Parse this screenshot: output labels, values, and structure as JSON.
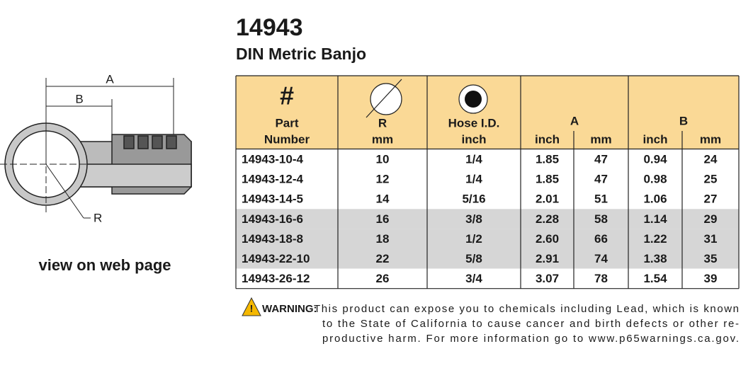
{
  "header": {
    "title": "14943",
    "subtitle": "DIN Metric Banjo"
  },
  "diagram": {
    "labels": [
      "A",
      "B",
      "R"
    ]
  },
  "link": "view on web page",
  "table": {
    "symbol": "#",
    "columns": [
      [
        "Part",
        "Number"
      ],
      [
        "R",
        "mm"
      ],
      [
        "Hose I.D.",
        "inch"
      ]
    ],
    "groups": [
      "A",
      "B"
    ],
    "units": [
      "inch",
      "mm",
      "inch",
      "mm"
    ],
    "rows": [
      [
        "14943-10-4",
        "10",
        "1/4",
        "1.85",
        "47",
        "0.94",
        "24"
      ],
      [
        "14943-12-4",
        "12",
        "1/4",
        "1.85",
        "47",
        "0.98",
        "25"
      ],
      [
        "14943-14-5",
        "14",
        "5/16",
        "2.01",
        "51",
        "1.06",
        "27"
      ],
      [
        "14943-16-6",
        "16",
        "3/8",
        "2.28",
        "58",
        "1.14",
        "29"
      ],
      [
        "14943-18-8",
        "18",
        "1/2",
        "2.60",
        "66",
        "1.22",
        "31"
      ],
      [
        "14943-22-10",
        "22",
        "5/8",
        "2.91",
        "74",
        "1.38",
        "35"
      ],
      [
        "14943-26-12",
        "26",
        "3/4",
        "3.07",
        "78",
        "1.54",
        "39"
      ]
    ]
  },
  "warning": {
    "label": "WARNING:",
    "lines": [
      "This product can expose you to chemicals including Lead, which is known",
      "to the State of California to cause cancer and birth defects or other re-",
      "productive harm.  For more information go to www.p65warnings.ca.gov."
    ]
  }
}
